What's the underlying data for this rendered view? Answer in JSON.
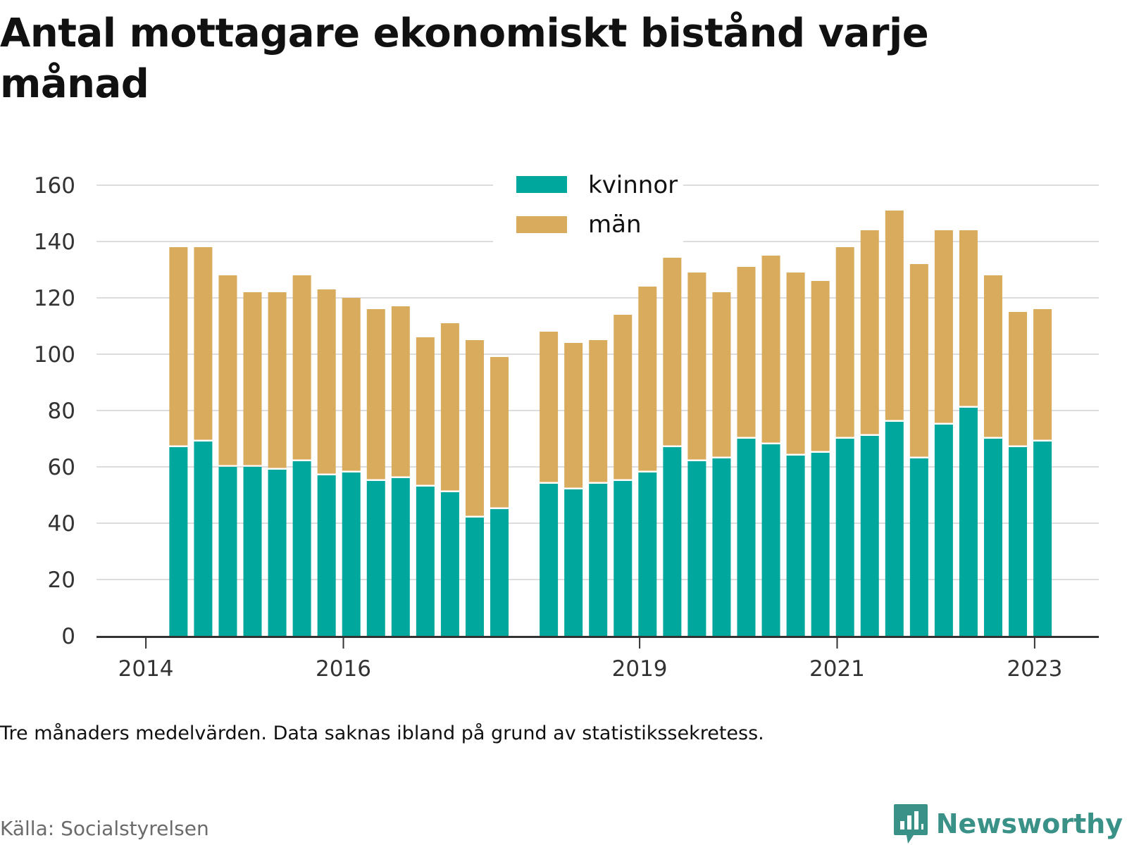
{
  "title": "Antal mottagare ekonomiskt bistånd varje månad",
  "note": "Tre månaders medelvärden. Data saknas ibland på grund av statistikssekretess.",
  "source": "Källa: Socialstyrelsen",
  "brand": {
    "name": "Newsworthy",
    "icon": "newsworthy-chart-bubble-icon",
    "color": "#3a9188"
  },
  "chart_data": {
    "type": "bar",
    "stacked": true,
    "grid": true,
    "legend_position": "top-center",
    "ylim": [
      0,
      160
    ],
    "yticks": [
      0,
      20,
      40,
      60,
      80,
      100,
      120,
      140,
      160
    ],
    "xticks": [
      {
        "label": "2014",
        "x": 2014.0
      },
      {
        "label": "2016",
        "x": 2016.0
      },
      {
        "label": "2019",
        "x": 2019.0
      },
      {
        "label": "2021",
        "x": 2021.0
      },
      {
        "label": "2023",
        "x": 2023.0
      }
    ],
    "xlim": [
      2013.5,
      2023.65
    ],
    "x": [
      2014.33,
      2014.58,
      2014.83,
      2015.08,
      2015.33,
      2015.58,
      2015.83,
      2016.08,
      2016.33,
      2016.58,
      2016.83,
      2017.08,
      2017.33,
      2017.58,
      2018.08,
      2018.33,
      2018.58,
      2018.83,
      2019.08,
      2019.33,
      2019.58,
      2019.83,
      2020.08,
      2020.33,
      2020.58,
      2020.83,
      2021.08,
      2021.33,
      2021.58,
      2021.83,
      2022.08,
      2022.33,
      2022.58,
      2022.83,
      2023.08
    ],
    "series": [
      {
        "name": "kvinnor",
        "color": "#00a79d",
        "values": [
          67,
          69,
          60,
          60,
          59,
          62,
          57,
          58,
          55,
          56,
          53,
          51,
          42,
          45,
          54,
          52,
          54,
          55,
          58,
          67,
          62,
          63,
          70,
          68,
          64,
          65,
          70,
          71,
          76,
          63,
          75,
          81,
          70,
          67,
          69
        ]
      },
      {
        "name": "män",
        "color": "#d9ab5d",
        "values": [
          71,
          69,
          68,
          62,
          63,
          66,
          66,
          62,
          61,
          61,
          53,
          60,
          63,
          54,
          54,
          52,
          51,
          59,
          66,
          69,
          67,
          59,
          61,
          67,
          65,
          61,
          68,
          73,
          75,
          69,
          69,
          63,
          58,
          48,
          47
        ]
      }
    ]
  }
}
